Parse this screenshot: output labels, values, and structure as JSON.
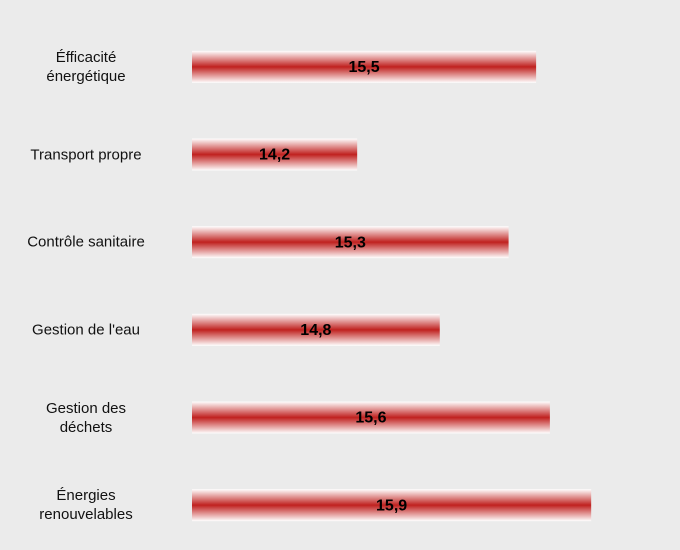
{
  "chart_data": {
    "type": "bar",
    "orientation": "horizontal",
    "categories": [
      "Éfficacité\nénergétique",
      "Transport propre",
      "Contrôle sanitaire",
      "Gestion de l'eau",
      "Gestion des\ndéchets",
      "Énergies\nrenouvelables"
    ],
    "values": [
      15.5,
      14.2,
      15.3,
      14.8,
      15.6,
      15.9
    ],
    "value_labels": [
      "15,5",
      "14,2",
      "15,3",
      "14,8",
      "15,6",
      "15,9"
    ],
    "color": "#c0211f",
    "xlim": [
      13,
      16.4
    ]
  }
}
